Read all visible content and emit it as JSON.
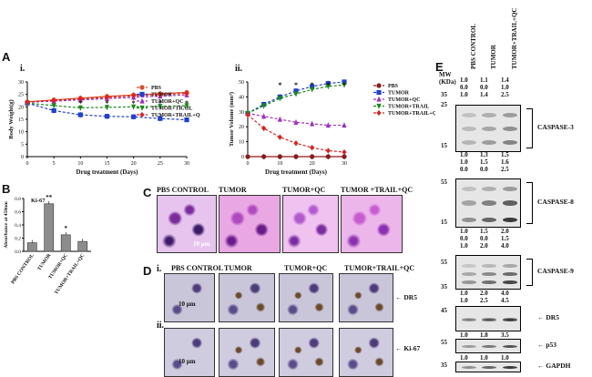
{
  "panels": {
    "A": "A",
    "B": "B",
    "C": "C",
    "D": "D",
    "E": "E",
    "Ai": "i.",
    "Aii": "ii.",
    "Di": "i.",
    "Dii": "ii."
  },
  "chart_data": [
    {
      "type": "line",
      "id": "Ai",
      "x": [
        0,
        5,
        10,
        15,
        20,
        25,
        30
      ],
      "xlabel": "Drug treatment (Days)",
      "ylabel": "Body Weight(g)",
      "ylim": [
        0,
        30
      ],
      "yticks": [
        0,
        5,
        10,
        15,
        20,
        25,
        30
      ],
      "xticks": [
        0,
        5,
        10,
        15,
        20,
        25,
        30
      ],
      "series": [
        {
          "name": "PBS",
          "color": "#d6502a",
          "marker": "circle",
          "values": [
            22.0,
            22.8,
            23.5,
            24.2,
            24.8,
            25.3,
            25.8
          ]
        },
        {
          "name": "TUMOR",
          "color": "#1f3fd6",
          "marker": "square",
          "values": [
            21.5,
            18.5,
            16.8,
            16.2,
            16.0,
            15.3,
            14.8
          ]
        },
        {
          "name": "TUMOR+QC",
          "color": "#a030c0",
          "marker": "triangle-up",
          "values": [
            21.8,
            22.3,
            22.8,
            23.3,
            23.8,
            24.3,
            24.8
          ]
        },
        {
          "name": "TUMOR+TRAIL",
          "color": "#1a8a1a",
          "marker": "triangle-down",
          "values": [
            21.5,
            20.5,
            19.6,
            19.8,
            20.0,
            20.2,
            20.5
          ]
        },
        {
          "name": "TUMOR+TRAIL+QC",
          "color": "#e02020",
          "marker": "diamond",
          "values": [
            22.0,
            22.6,
            23.2,
            23.8,
            24.4,
            24.9,
            25.4
          ]
        }
      ],
      "annotations": [
        "*",
        "*",
        "*",
        "*",
        "*"
      ]
    },
    {
      "type": "line",
      "id": "Aii",
      "x": [
        0,
        5,
        10,
        15,
        20,
        25,
        30
      ],
      "xlabel": "Drug treatment (Days)",
      "ylabel": "Tumor Volume (mm³)",
      "ylim": [
        0,
        50
      ],
      "yticks": [
        0,
        10,
        20,
        30,
        40,
        50
      ],
      "xticks": [
        0,
        10,
        20,
        30
      ],
      "series": [
        {
          "name": "PBS",
          "color": "#8b1a1a",
          "marker": "circle",
          "values": [
            0,
            0,
            0,
            0,
            0,
            0,
            0
          ]
        },
        {
          "name": "TUMOR",
          "color": "#1f3fd6",
          "marker": "square",
          "values": [
            29,
            35,
            40,
            44,
            47,
            49,
            50
          ]
        },
        {
          "name": "TUMOR+QC",
          "color": "#a030c0",
          "marker": "triangle-up",
          "values": [
            29,
            27,
            25,
            23,
            22,
            21,
            21
          ]
        },
        {
          "name": "TUMOR+TRAIL",
          "color": "#1a8a1a",
          "marker": "triangle-down",
          "values": [
            29,
            34,
            39,
            42,
            45,
            47,
            48
          ]
        },
        {
          "name": "TUMOR+TRAIL+QC",
          "color": "#e02020",
          "marker": "diamond",
          "values": [
            28,
            19,
            13,
            9,
            6,
            4,
            3
          ]
        }
      ],
      "annotations": [
        "*",
        "*",
        "*",
        "*",
        "*"
      ]
    },
    {
      "type": "bar",
      "id": "B",
      "categories": [
        "PBS CONTROL",
        "TUMOR",
        "TUMOR+QC",
        "TUMOR+TRAIL+QC"
      ],
      "values": [
        0.13,
        0.72,
        0.25,
        0.15
      ],
      "ylabel": "Absorbance at 450nm",
      "ylim": [
        0,
        0.8
      ],
      "yticks": [
        "0.0",
        "0.2",
        "0.4",
        "0.6",
        "0.8"
      ],
      "title": "Ki-67",
      "annotations": [
        "**",
        "*"
      ]
    }
  ],
  "C": {
    "labels": [
      "PBS CONTROL",
      "TUMOR",
      "TUMOR+QC",
      "TUMOR +TRAIL+QC"
    ],
    "scale": "10 μm"
  },
  "D": {
    "labels": [
      "PBS CONTROL",
      "TUMOR",
      "TUMOR+QC",
      "TUMOR+TRAIL+QC"
    ],
    "markers": [
      "DR5",
      "Ki-67"
    ],
    "scale": "10 μm"
  },
  "E": {
    "mw_label": "MW\n(KDa)",
    "lanes": [
      "PBS CONTROL",
      "TUMOR",
      "TUMOR+TRAIL+QC"
    ],
    "blots": [
      {
        "name": "CASPASE-3",
        "quant": [
          [
            "1.0",
            "1.1",
            "1.4"
          ],
          [
            "0.0",
            "0.0",
            "1.0"
          ],
          [
            "1.0",
            "1.4",
            "2.5"
          ]
        ],
        "mw": [
          "35",
          "25",
          "15"
        ]
      },
      {
        "name": "CASPASE-8",
        "quant": [
          [
            "1.0",
            "1.3",
            "1.5"
          ],
          [
            "1.0",
            "1.5",
            "1.6"
          ],
          [
            "0.0",
            "0.0",
            "2.5"
          ]
        ],
        "mw": [
          "55",
          "15"
        ]
      },
      {
        "name": "CASPASE-9",
        "quant": [
          [
            "1.0",
            "1.5",
            "2.0"
          ],
          [
            "0.0",
            "0.0",
            "1.5"
          ],
          [
            "1.0",
            "2.0",
            "4.0"
          ]
        ],
        "mw": [
          "55",
          "35"
        ]
      },
      {
        "name": "DR5",
        "quant": [
          [
            "1.0",
            "2.0",
            "4.0"
          ],
          [
            "1.0",
            "2.5",
            "4.5"
          ]
        ],
        "mw": [
          "45"
        ]
      },
      {
        "name": "p53",
        "quant": [
          [
            "1.0",
            "1.8",
            "3.5"
          ]
        ],
        "mw": [
          "55"
        ]
      },
      {
        "name": "GAPDH",
        "quant": [
          [
            "1.0",
            "1.0",
            "1.0"
          ]
        ],
        "mw": [
          "35"
        ]
      }
    ]
  }
}
